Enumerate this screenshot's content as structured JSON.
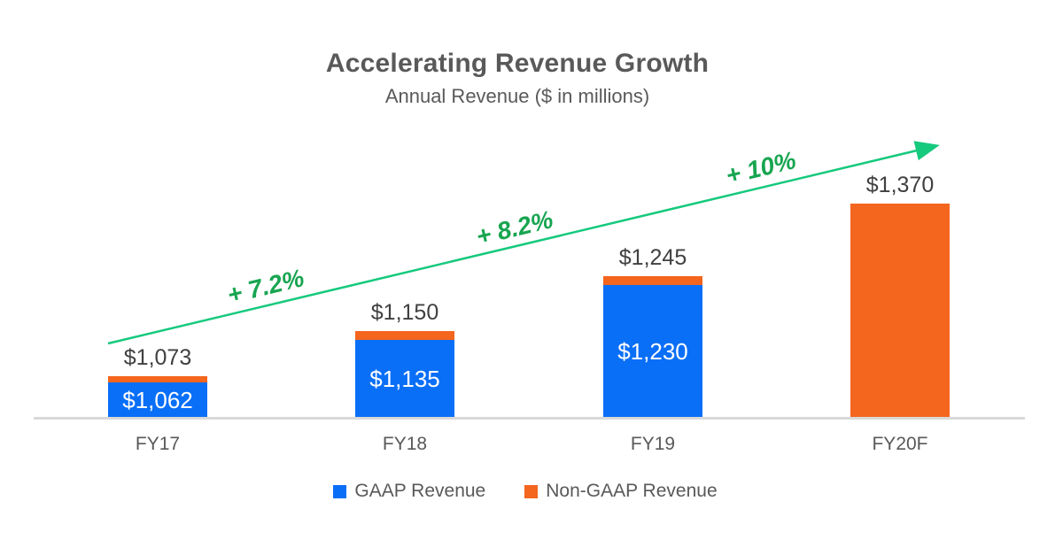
{
  "chart_data": {
    "type": "bar",
    "stacked": true,
    "title": "Accelerating Revenue Growth",
    "subtitle": "Annual Revenue ($ in millions)",
    "categories": [
      "FY17",
      "FY18",
      "FY19",
      "FY20F"
    ],
    "series": [
      {
        "name": "GAAP Revenue",
        "color": "#0a6ff7",
        "values": [
          1062,
          1135,
          1230,
          0
        ]
      },
      {
        "name": "Non-GAAP Revenue",
        "color": "#f4651e",
        "values": [
          11,
          15,
          15,
          1370
        ]
      }
    ],
    "totals": [
      1073,
      1150,
      1245,
      1370
    ],
    "total_labels": [
      "$1,073",
      "$1,150",
      "$1,245",
      "$1,370"
    ],
    "bar_labels": [
      "$1,062",
      "$1,135",
      "$1,230",
      ""
    ],
    "growth_labels": [
      "+ 7.2%",
      "+ 8.2%",
      "+ 10%"
    ],
    "axis": {
      "min": 1000,
      "gridlines": false,
      "baseline": true
    },
    "legend": {
      "position": "bottom",
      "items": [
        {
          "label": "GAAP Revenue",
          "color": "#0a6ff7"
        },
        {
          "label": "Non-GAAP Revenue",
          "color": "#f4651e"
        }
      ]
    },
    "colors": {
      "trend_line": "#15c97d",
      "trend_text": "#17a550",
      "title_text": "#595959",
      "value_text": "#404040",
      "axis_line": "#d9d9d9"
    }
  }
}
